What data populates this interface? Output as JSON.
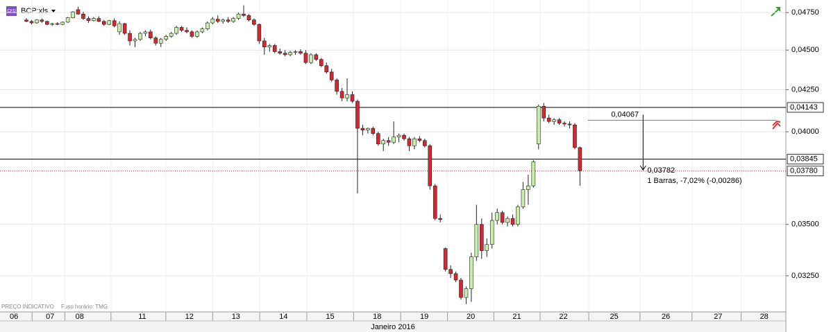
{
  "header": {
    "symbol": "BCP:xls",
    "badge": "CFD",
    "note": "PREÇO INDICATIVO",
    "timezone": "Fuso horário: TMG"
  },
  "chart_data": {
    "type": "candlestick",
    "log_scale": true,
    "grid": true,
    "up_color": "#c8eea8",
    "down_color": "#d8262e",
    "outline_color": "#222222",
    "categories": [
      null,
      null,
      null,
      null,
      null,
      null,
      null,
      null,
      null,
      null,
      null,
      null,
      null,
      null,
      null,
      null,
      null,
      null,
      null,
      null,
      null,
      null,
      null,
      null,
      null,
      null,
      null,
      null,
      null,
      null,
      null,
      null,
      null,
      null,
      null,
      null,
      null,
      null,
      null,
      null,
      null,
      null,
      null,
      null,
      null,
      null,
      null,
      null,
      null,
      null,
      null,
      null,
      null,
      null,
      null,
      null,
      null,
      null,
      null,
      null,
      null,
      null,
      null,
      null,
      null,
      null,
      null,
      null,
      null,
      null,
      null,
      null,
      null,
      null,
      null,
      null,
      null,
      null,
      null,
      null,
      null,
      null,
      null,
      null,
      null,
      null,
      null,
      null,
      null,
      null,
      null,
      null,
      null,
      null,
      null,
      null,
      null,
      null,
      null,
      null,
      null,
      null,
      null,
      null,
      null,
      null,
      null,
      null
    ],
    "ohlc": [
      [
        0.047,
        0.04712,
        0.04685,
        0.0469
      ],
      [
        0.0469,
        0.047,
        0.0467,
        0.0468
      ],
      [
        0.0468,
        0.04705,
        0.04675,
        0.047
      ],
      [
        0.047,
        0.0471,
        0.0468,
        0.0469
      ],
      [
        0.0469,
        0.04695,
        0.04665,
        0.0467
      ],
      [
        0.0467,
        0.0468,
        0.0466,
        0.04675
      ],
      [
        0.04675,
        0.04685,
        0.04665,
        0.0467
      ],
      [
        0.0467,
        0.0469,
        0.04665,
        0.04685
      ],
      [
        0.04685,
        0.0472,
        0.0468,
        0.04715
      ],
      [
        0.04715,
        0.0476,
        0.0471,
        0.04755
      ],
      [
        0.0477,
        0.0479,
        0.04735,
        0.0474
      ],
      [
        0.0474,
        0.04755,
        0.047,
        0.0471
      ],
      [
        0.0471,
        0.04725,
        0.0468,
        0.04695
      ],
      [
        0.04695,
        0.0472,
        0.0469,
        0.0471
      ],
      [
        0.0471,
        0.04725,
        0.04685,
        0.0469
      ],
      [
        0.0469,
        0.047,
        0.0466,
        0.0467
      ],
      [
        0.0467,
        0.047,
        0.04665,
        0.04695
      ],
      [
        0.04695,
        0.0471,
        0.0465,
        0.0466
      ],
      [
        0.0462,
        0.0469,
        0.046,
        0.04675
      ],
      [
        0.04675,
        0.0468,
        0.046,
        0.0461
      ],
      [
        0.0461,
        0.0463,
        0.0453,
        0.0456
      ],
      [
        0.0456,
        0.0458,
        0.0452,
        0.0457
      ],
      [
        0.0457,
        0.0462,
        0.0456,
        0.0461
      ],
      [
        0.0461,
        0.0463,
        0.0459,
        0.0462
      ],
      [
        0.0462,
        0.04635,
        0.0457,
        0.0458
      ],
      [
        0.0458,
        0.0459,
        0.0453,
        0.04545
      ],
      [
        0.04545,
        0.0458,
        0.0452,
        0.0457
      ],
      [
        0.0457,
        0.046,
        0.0456,
        0.0459
      ],
      [
        0.0459,
        0.0462,
        0.0458,
        0.0461
      ],
      [
        0.0461,
        0.0466,
        0.046,
        0.0465
      ],
      [
        0.0465,
        0.0466,
        0.0462,
        0.0463
      ],
      [
        0.0463,
        0.0465,
        0.0461,
        0.0462
      ],
      [
        0.0462,
        0.0463,
        0.0458,
        0.0459
      ],
      [
        0.0459,
        0.0463,
        0.0458,
        0.0462
      ],
      [
        0.0462,
        0.0465,
        0.0461,
        0.0464
      ],
      [
        0.0464,
        0.0469,
        0.0463,
        0.0468
      ],
      [
        0.0468,
        0.0472,
        0.0467,
        0.04705
      ],
      [
        0.04705,
        0.0473,
        0.0468,
        0.0469
      ],
      [
        0.0469,
        0.0471,
        0.04675,
        0.047
      ],
      [
        0.047,
        0.0472,
        0.0468,
        0.0469
      ],
      [
        0.0469,
        0.0472,
        0.0468,
        0.0471
      ],
      [
        0.0471,
        0.0475,
        0.047,
        0.0474
      ],
      [
        0.0474,
        0.048,
        0.0472,
        0.0473
      ],
      [
        0.0473,
        0.0474,
        0.0469,
        0.047
      ],
      [
        0.047,
        0.0471,
        0.0466,
        0.0467
      ],
      [
        0.0467,
        0.04675,
        0.0454,
        0.0456
      ],
      [
        0.0456,
        0.0458,
        0.0447,
        0.0452
      ],
      [
        0.0452,
        0.0454,
        0.0449,
        0.0453
      ],
      [
        0.0453,
        0.0454,
        0.0448,
        0.0449
      ],
      [
        0.0449,
        0.0451,
        0.0447,
        0.0448
      ],
      [
        0.0448,
        0.045,
        0.0446,
        0.0447
      ],
      [
        0.0447,
        0.04495,
        0.0446,
        0.04485
      ],
      [
        0.04485,
        0.045,
        0.0447,
        0.0449
      ],
      [
        0.0449,
        0.04505,
        0.0447,
        0.0448
      ],
      [
        0.0448,
        0.045,
        0.0441,
        0.0442
      ],
      [
        0.0442,
        0.0448,
        0.0441,
        0.0447
      ],
      [
        0.0447,
        0.0448,
        0.0443,
        0.0444
      ],
      [
        0.0444,
        0.0445,
        0.0439,
        0.044
      ],
      [
        0.044,
        0.0442,
        0.0435,
        0.0436
      ],
      [
        0.0436,
        0.0438,
        0.043,
        0.0431
      ],
      [
        0.0431,
        0.0432,
        0.0422,
        0.0424
      ],
      [
        0.0424,
        0.0426,
        0.0418,
        0.042
      ],
      [
        0.042,
        0.0432,
        0.0418,
        0.0422
      ],
      [
        0.0422,
        0.0424,
        0.0417,
        0.0418
      ],
      [
        0.0418,
        0.0419,
        0.0366,
        0.0402
      ],
      [
        0.0402,
        0.0404,
        0.0398,
        0.0401
      ],
      [
        0.0401,
        0.04025,
        0.0399,
        0.0402
      ],
      [
        0.0402,
        0.0403,
        0.0398,
        0.0399
      ],
      [
        0.0399,
        0.04,
        0.0392,
        0.0393
      ],
      [
        0.0393,
        0.0396,
        0.0389,
        0.0395
      ],
      [
        0.0395,
        0.0397,
        0.0392,
        0.0394
      ],
      [
        0.0394,
        0.0406,
        0.0393,
        0.0397
      ],
      [
        0.0397,
        0.0399,
        0.0394,
        0.0398
      ],
      [
        0.0398,
        0.0399,
        0.0395,
        0.0396
      ],
      [
        0.0396,
        0.0397,
        0.0389,
        0.0392
      ],
      [
        0.0392,
        0.0397,
        0.039,
        0.0396
      ],
      [
        0.0396,
        0.03975,
        0.0394,
        0.0395
      ],
      [
        0.0395,
        0.0396,
        0.0391,
        0.0392
      ],
      [
        0.0392,
        0.0393,
        0.0368,
        0.037
      ],
      [
        0.037,
        0.0371,
        0.0352,
        0.0353
      ],
      [
        0.0353,
        0.0355,
        0.0351,
        0.03525
      ],
      [
        0.0338,
        0.03385,
        0.0327,
        0.0328
      ],
      [
        0.0328,
        0.033,
        0.0324,
        0.0326
      ],
      [
        0.0326,
        0.0327,
        0.0322,
        0.0323
      ],
      [
        0.0323,
        0.0324,
        0.0314,
        0.0315
      ],
      [
        0.0315,
        0.032,
        0.0312,
        0.0319
      ],
      [
        0.0319,
        0.0336,
        0.0313,
        0.0334
      ],
      [
        0.0334,
        0.036,
        0.0332,
        0.035
      ],
      [
        0.035,
        0.0353,
        0.0333,
        0.0337
      ],
      [
        0.0337,
        0.0343,
        0.0334,
        0.034
      ],
      [
        0.034,
        0.0356,
        0.0338,
        0.0352
      ],
      [
        0.0352,
        0.0358,
        0.035,
        0.0356
      ],
      [
        0.0356,
        0.0357,
        0.035,
        0.0351
      ],
      [
        0.0351,
        0.0354,
        0.0349,
        0.0353
      ],
      [
        0.0353,
        0.0355,
        0.0349,
        0.035
      ],
      [
        0.035,
        0.036,
        0.0349,
        0.0359
      ],
      [
        0.0359,
        0.0372,
        0.0358,
        0.0368
      ],
      [
        0.0368,
        0.0376,
        0.036,
        0.037
      ],
      [
        0.037,
        0.0384,
        0.0369,
        0.0383
      ],
      [
        0.0393,
        0.0416,
        0.039,
        0.0415
      ],
      [
        0.0415,
        0.0417,
        0.0406,
        0.0408
      ],
      [
        0.0408,
        0.041,
        0.0405,
        0.0406
      ],
      [
        0.0406,
        0.0408,
        0.0404,
        0.0407
      ],
      [
        0.0407,
        0.0408,
        0.0404,
        0.0405
      ],
      [
        0.0405,
        0.0406,
        0.0403,
        0.04045
      ],
      [
        0.04045,
        0.0406,
        0.0402,
        0.0404
      ],
      [
        0.0404,
        0.0405,
        0.039,
        0.0391
      ],
      [
        0.0391,
        0.03915,
        0.037,
        0.03782
      ]
    ],
    "xlim": [
      -5.1,
      146.8
    ],
    "xticks": [
      {
        "value": -2.4,
        "label": "06"
      },
      {
        "value": 4.6,
        "label": "07"
      },
      {
        "value": 10.3,
        "label": "08"
      },
      {
        "value": 22.4,
        "label": "11"
      },
      {
        "value": 31.5,
        "label": "12"
      },
      {
        "value": 40.5,
        "label": "13"
      },
      {
        "value": 49.7,
        "label": "14"
      },
      {
        "value": 58.7,
        "label": "15"
      },
      {
        "value": 67.8,
        "label": "18"
      },
      {
        "value": 76.9,
        "label": "19"
      },
      {
        "value": 85.9,
        "label": "20"
      },
      {
        "value": 94.8,
        "label": "21"
      },
      {
        "value": 103.8,
        "label": "22"
      },
      {
        "value": 113.6,
        "label": "25"
      },
      {
        "value": 123.6,
        "label": "26"
      },
      {
        "value": 133.7,
        "label": "27"
      },
      {
        "value": 142.6,
        "label": "28"
      }
    ],
    "xlabel": "Janeiro 2016",
    "ylim": [
      0.03085,
      0.04837
    ],
    "yticks": [
      {
        "value": 0.0475,
        "label": "0,04750"
      },
      {
        "value": 0.045,
        "label": "0,04500"
      },
      {
        "value": 0.0425,
        "label": "0,04250"
      },
      {
        "value": 0.04,
        "label": "0,04000"
      },
      {
        "value": 0.035,
        "label": "0,03500"
      },
      {
        "value": 0.0325,
        "label": "0,03250"
      }
    ],
    "levels": [
      {
        "value": 0.04143,
        "label": "0,04143",
        "color": "#000000",
        "style": "solid"
      },
      {
        "value": 0.03845,
        "label": "0,03845",
        "color": "#000000",
        "style": "solid"
      },
      {
        "value": 0.0378,
        "label": "0,03780",
        "color": "#cc2222",
        "style": "dotted"
      }
    ],
    "measure": {
      "start": {
        "value": 0.04067,
        "label": "0,04067"
      },
      "end": {
        "value": 0.03782,
        "label": "0,03782"
      },
      "text": "1 Barras, -7,02% (-0,00286)",
      "color": "#5aa544"
    }
  }
}
